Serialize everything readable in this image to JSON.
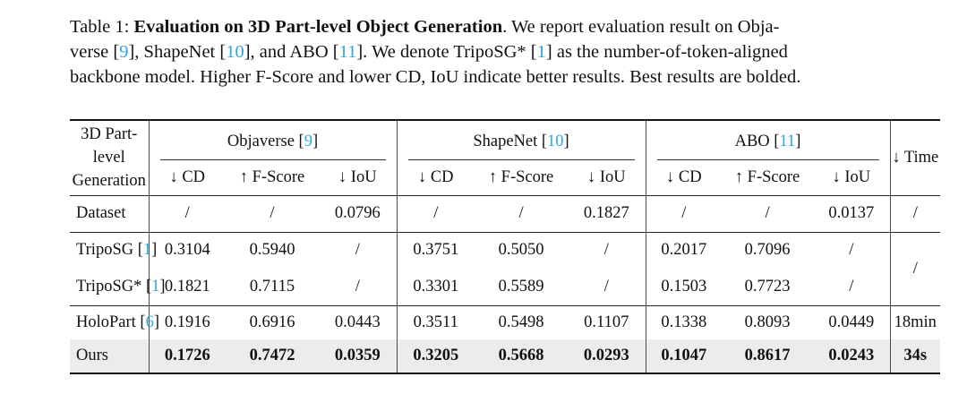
{
  "colors": {
    "citation": "#31a5dc",
    "text": "#111111",
    "highlight_row_bg": "#ececec",
    "rule_heavy": "#151515",
    "rule_mid": "#262626",
    "rule_vert": "#4a4a4a"
  },
  "caption": {
    "lines": [
      [
        {
          "t": "Table 1: "
        },
        {
          "t": "Evaluation on 3D Part-level Object Generation",
          "b": true
        },
        {
          "t": ". We report evaluation result on Obja-"
        }
      ],
      [
        {
          "t": "verse ["
        },
        {
          "t": "9",
          "c": true
        },
        {
          "t": "], ShapeNet ["
        },
        {
          "t": "10",
          "c": true
        },
        {
          "t": "], and ABO ["
        },
        {
          "t": "11",
          "c": true
        },
        {
          "t": "]. We denote TripoSG* ["
        },
        {
          "t": "1",
          "c": true
        },
        {
          "t": "] as the number-of-token-aligned"
        }
      ],
      [
        {
          "t": "backbone model. Higher F-Score and lower CD, IoU indicate better results. Best results are bolded."
        }
      ]
    ]
  },
  "table": {
    "stub_header": {
      "line1": "3D Part-level",
      "line2": "Generation"
    },
    "groups": [
      {
        "prefix": "Objaverse [",
        "cite": "9",
        "suffix": "]"
      },
      {
        "prefix": "ShapeNet [",
        "cite": "10",
        "suffix": "]"
      },
      {
        "prefix": "ABO [",
        "cite": "11",
        "suffix": "]"
      }
    ],
    "metrics": [
      "↓ CD",
      "↑ F-Score",
      "↓ IoU"
    ],
    "time_header": "↓ Time",
    "rows": {
      "dataset": {
        "label": "Dataset",
        "v": [
          "/",
          "/",
          "0.0796",
          "/",
          "/",
          "0.1827",
          "/",
          "/",
          "0.0137"
        ],
        "time": "/"
      },
      "triposg": {
        "prefix": "TripoSG [",
        "cite": "1",
        "suffix": "]",
        "v": [
          "0.3104",
          "0.5940",
          "/",
          "0.3751",
          "0.5050",
          "/",
          "0.2017",
          "0.7096",
          "/"
        ]
      },
      "triposg_star": {
        "prefix": "TripoSG* [",
        "cite": "1",
        "suffix": "]",
        "v": [
          "0.1821",
          "0.7115",
          "/",
          "0.3301",
          "0.5589",
          "/",
          "0.1503",
          "0.7723",
          "/"
        ]
      },
      "triposg_time": "/",
      "holopart": {
        "prefix": "HoloPart [",
        "cite": "6",
        "suffix": "]",
        "v": [
          "0.1916",
          "0.6916",
          "0.0443",
          "0.3511",
          "0.5498",
          "0.1107",
          "0.1338",
          "0.8093",
          "0.0449"
        ],
        "time": "18min"
      },
      "ours": {
        "label": "Ours",
        "v": [
          "0.1726",
          "0.7472",
          "0.0359",
          "0.3205",
          "0.5668",
          "0.0293",
          "0.1047",
          "0.8617",
          "0.0243"
        ],
        "time": "34s"
      }
    }
  }
}
